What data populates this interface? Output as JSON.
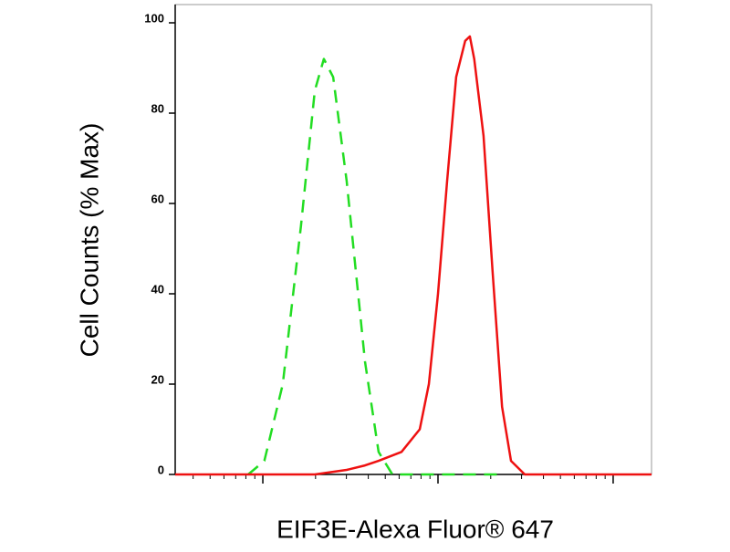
{
  "chart_data": {
    "type": "line",
    "x_label": "EIF3E-Alexa Fluor® 647",
    "y_label": "Cell Counts (% Max)",
    "xscale": "log",
    "xlim": [
      3.16,
      1656
    ],
    "xticks": [
      10,
      100,
      1000
    ],
    "ylim": [
      0,
      100
    ],
    "yticks": [
      0,
      20,
      40,
      60,
      80,
      100
    ],
    "series": [
      {
        "color": "#22dd22",
        "dashed": true,
        "x": [
          8.25,
          10.2,
          13,
          16.5,
          19.8,
          22.3,
          25.2,
          30.1,
          38.3,
          45.8,
          54.9,
          88.7,
          143,
          232
        ],
        "values": [
          0,
          3,
          20,
          55,
          85,
          92,
          88,
          65,
          25,
          5,
          0,
          0,
          0,
          0
        ]
      },
      {
        "color": "#ee1111",
        "dashed": false,
        "x": [
          3.16,
          19.8,
          30.1,
          38.3,
          45.8,
          61.9,
          78.7,
          88.7,
          100,
          112.7,
          127,
          143,
          152,
          161,
          182,
          205,
          232,
          261,
          313,
          374,
          1656
        ],
        "values": [
          0,
          0,
          1,
          2,
          3,
          5,
          10,
          20,
          40,
          65,
          88,
          96,
          97,
          92,
          75,
          45,
          15,
          3,
          0,
          0,
          0
        ]
      }
    ]
  }
}
